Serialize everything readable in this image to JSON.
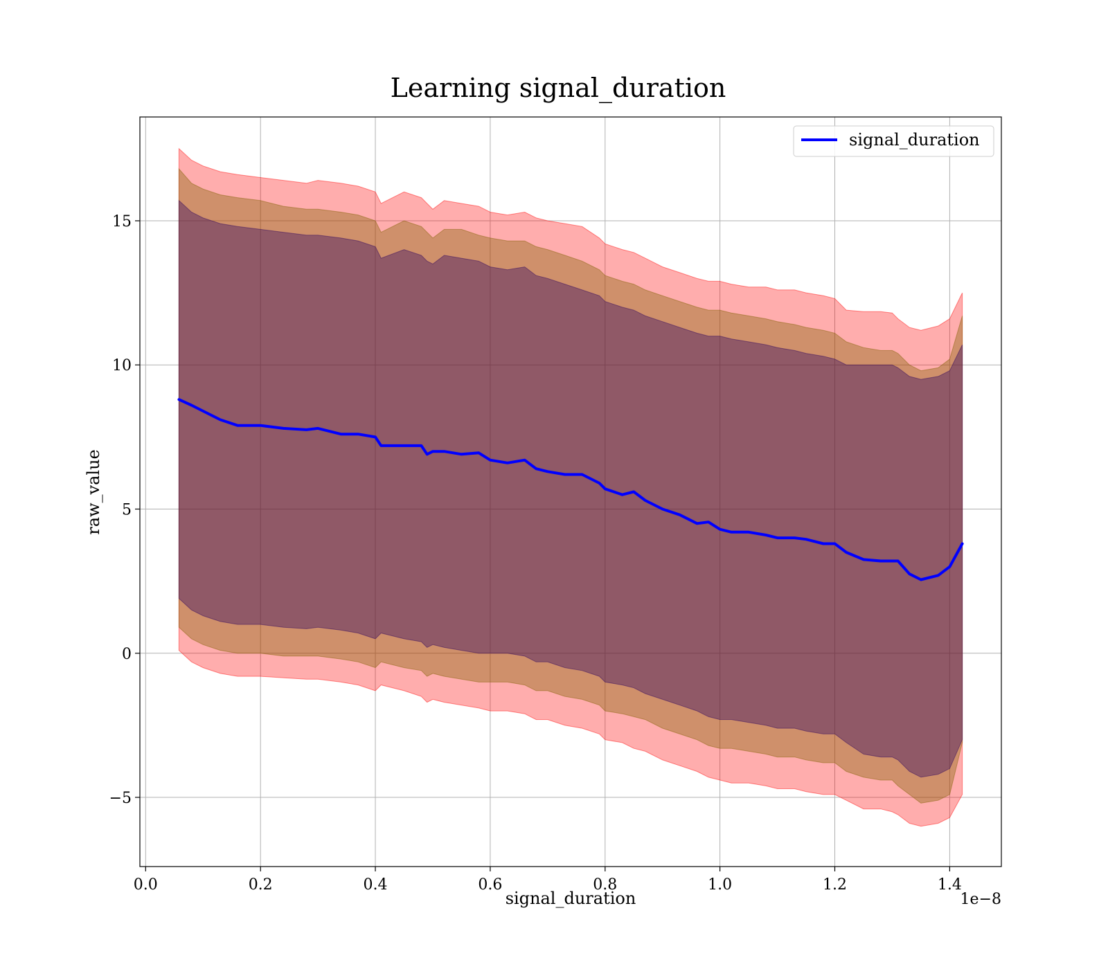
{
  "chart_data": {
    "type": "area",
    "title": "Learning signal_duration",
    "xlabel": "signal_duration",
    "ylabel": "raw_value",
    "x_offset_text": "1e−8",
    "xlim": [
      -0.01,
      1.49
    ],
    "ylim": [
      -7.4,
      18.6
    ],
    "x_ticks": [
      0.0,
      0.2,
      0.4,
      0.6,
      0.8,
      1.0,
      1.2,
      1.4
    ],
    "x_tick_labels": [
      "0.0",
      "0.2",
      "0.4",
      "0.6",
      "0.8",
      "1.0",
      "1.2",
      "1.4"
    ],
    "y_ticks": [
      -5,
      0,
      5,
      10,
      15
    ],
    "y_tick_labels": [
      "−5",
      "0",
      "5",
      "10",
      "15"
    ],
    "grid": true,
    "legend_position": "top-right",
    "x": [
      0.058,
      0.08,
      0.1,
      0.13,
      0.16,
      0.2,
      0.24,
      0.28,
      0.3,
      0.34,
      0.37,
      0.4,
      0.41,
      0.45,
      0.48,
      0.49,
      0.5,
      0.52,
      0.55,
      0.58,
      0.6,
      0.63,
      0.66,
      0.68,
      0.7,
      0.73,
      0.76,
      0.79,
      0.8,
      0.83,
      0.85,
      0.87,
      0.9,
      0.93,
      0.96,
      0.98,
      1.0,
      1.02,
      1.05,
      1.08,
      1.1,
      1.13,
      1.15,
      1.18,
      1.2,
      1.22,
      1.25,
      1.28,
      1.3,
      1.31,
      1.33,
      1.35,
      1.38,
      1.4,
      1.422
    ],
    "series": [
      {
        "name": "signal_duration",
        "color": "#0000ff",
        "values": [
          8.8,
          8.6,
          8.4,
          8.1,
          7.9,
          7.9,
          7.8,
          7.75,
          7.8,
          7.6,
          7.6,
          7.5,
          7.2,
          7.2,
          7.2,
          6.9,
          7.0,
          7.0,
          6.9,
          6.95,
          6.7,
          6.6,
          6.7,
          6.4,
          6.3,
          6.2,
          6.2,
          5.9,
          5.7,
          5.5,
          5.6,
          5.3,
          5.0,
          4.8,
          4.5,
          4.55,
          4.3,
          4.2,
          4.2,
          4.1,
          4.0,
          4.0,
          3.95,
          3.8,
          3.8,
          3.5,
          3.25,
          3.2,
          3.2,
          3.2,
          2.75,
          2.55,
          2.7,
          3.0,
          3.8
        ]
      }
    ],
    "bands": [
      {
        "color": "#ff0000",
        "opacity": 0.32,
        "upper": [
          17.5,
          17.1,
          16.9,
          16.7,
          16.6,
          16.5,
          16.4,
          16.3,
          16.4,
          16.3,
          16.2,
          16.0,
          15.6,
          16.0,
          15.8,
          15.6,
          15.4,
          15.7,
          15.6,
          15.5,
          15.3,
          15.2,
          15.3,
          15.1,
          15.0,
          14.9,
          14.8,
          14.4,
          14.2,
          14.0,
          13.9,
          13.7,
          13.4,
          13.2,
          13.0,
          12.9,
          12.9,
          12.8,
          12.7,
          12.7,
          12.6,
          12.6,
          12.5,
          12.4,
          12.3,
          11.9,
          11.85,
          11.85,
          11.8,
          11.6,
          11.3,
          11.2,
          11.35,
          11.6,
          12.5
        ],
        "lower": [
          0.1,
          -0.3,
          -0.5,
          -0.7,
          -0.8,
          -0.8,
          -0.85,
          -0.9,
          -0.9,
          -1.0,
          -1.1,
          -1.3,
          -1.1,
          -1.3,
          -1.5,
          -1.7,
          -1.6,
          -1.7,
          -1.8,
          -1.9,
          -2.0,
          -2.0,
          -2.1,
          -2.3,
          -2.3,
          -2.5,
          -2.6,
          -2.8,
          -3.0,
          -3.1,
          -3.3,
          -3.4,
          -3.7,
          -3.9,
          -4.1,
          -4.3,
          -4.4,
          -4.5,
          -4.5,
          -4.6,
          -4.7,
          -4.7,
          -4.8,
          -4.9,
          -4.9,
          -5.1,
          -5.4,
          -5.4,
          -5.5,
          -5.6,
          -5.9,
          -6.0,
          -5.9,
          -5.7,
          -4.9
        ]
      },
      {
        "color": "#806000",
        "opacity": 0.38,
        "upper": [
          16.8,
          16.3,
          16.1,
          15.9,
          15.8,
          15.7,
          15.5,
          15.4,
          15.4,
          15.3,
          15.2,
          15.0,
          14.6,
          15.0,
          14.8,
          14.6,
          14.4,
          14.7,
          14.7,
          14.5,
          14.4,
          14.3,
          14.3,
          14.1,
          14.0,
          13.8,
          13.6,
          13.3,
          13.1,
          12.9,
          12.8,
          12.6,
          12.4,
          12.2,
          12.0,
          11.9,
          11.9,
          11.8,
          11.7,
          11.6,
          11.5,
          11.4,
          11.3,
          11.2,
          11.1,
          10.8,
          10.6,
          10.5,
          10.5,
          10.4,
          10.0,
          9.8,
          9.9,
          10.2,
          11.7
        ],
        "lower": [
          0.9,
          0.5,
          0.3,
          0.1,
          0.0,
          0.0,
          -0.1,
          -0.1,
          -0.1,
          -0.2,
          -0.3,
          -0.5,
          -0.3,
          -0.5,
          -0.6,
          -0.8,
          -0.7,
          -0.8,
          -0.9,
          -1.0,
          -1.0,
          -1.0,
          -1.1,
          -1.3,
          -1.3,
          -1.5,
          -1.6,
          -1.8,
          -2.0,
          -2.1,
          -2.2,
          -2.3,
          -2.6,
          -2.8,
          -3.0,
          -3.2,
          -3.3,
          -3.3,
          -3.4,
          -3.5,
          -3.6,
          -3.6,
          -3.7,
          -3.8,
          -3.8,
          -4.1,
          -4.3,
          -4.4,
          -4.4,
          -4.6,
          -4.9,
          -5.2,
          -5.1,
          -4.9,
          -3.1
        ]
      },
      {
        "color": "#2a0060",
        "opacity": 0.38,
        "upper": [
          15.7,
          15.3,
          15.1,
          14.9,
          14.8,
          14.7,
          14.6,
          14.5,
          14.5,
          14.4,
          14.3,
          14.1,
          13.7,
          14.0,
          13.8,
          13.6,
          13.5,
          13.8,
          13.7,
          13.6,
          13.4,
          13.3,
          13.4,
          13.1,
          13.0,
          12.8,
          12.6,
          12.4,
          12.2,
          12.0,
          11.9,
          11.7,
          11.5,
          11.3,
          11.1,
          11.0,
          11.0,
          10.9,
          10.8,
          10.7,
          10.6,
          10.5,
          10.4,
          10.3,
          10.2,
          10.0,
          10.0,
          10.0,
          10.0,
          9.9,
          9.6,
          9.5,
          9.6,
          9.8,
          10.7
        ],
        "lower": [
          1.9,
          1.5,
          1.3,
          1.1,
          1.0,
          1.0,
          0.9,
          0.85,
          0.9,
          0.8,
          0.7,
          0.5,
          0.7,
          0.5,
          0.4,
          0.2,
          0.3,
          0.2,
          0.1,
          0.0,
          0.0,
          0.0,
          -0.1,
          -0.3,
          -0.3,
          -0.5,
          -0.6,
          -0.8,
          -1.0,
          -1.1,
          -1.2,
          -1.4,
          -1.6,
          -1.8,
          -2.0,
          -2.2,
          -2.3,
          -2.3,
          -2.4,
          -2.5,
          -2.6,
          -2.6,
          -2.7,
          -2.8,
          -2.8,
          -3.1,
          -3.5,
          -3.6,
          -3.6,
          -3.7,
          -4.1,
          -4.3,
          -4.2,
          -4.0,
          -3.0
        ]
      }
    ]
  }
}
